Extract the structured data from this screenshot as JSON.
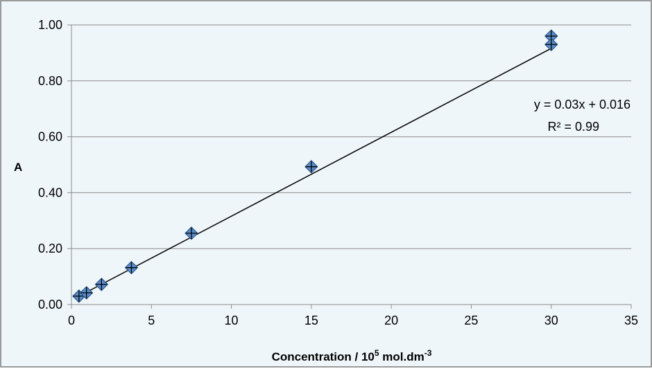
{
  "colors": {
    "background": "#eef6f9",
    "border": "#7a7a7a",
    "gridline": "#8c8c8c",
    "marker_fill": "#5b8cc9",
    "marker_stroke": "#1f4b80",
    "trendline": "#000000"
  },
  "chart_data": {
    "type": "scatter",
    "title": "",
    "xlabel": {
      "prefix": "Concentration / 10",
      "sup1": "5",
      "middle": " mol.dm",
      "sup2": "-3"
    },
    "ylabel": "A",
    "xlim": [
      0,
      35
    ],
    "ylim": [
      0,
      1.0
    ],
    "x_ticks": [
      0,
      5,
      10,
      15,
      20,
      25,
      30,
      35
    ],
    "y_ticks": [
      0.0,
      0.2,
      0.4,
      0.6,
      0.8,
      1.0
    ],
    "x_tick_labels": [
      "0",
      "5",
      "10",
      "15",
      "20",
      "25",
      "30",
      "35"
    ],
    "y_tick_labels": [
      "0.00",
      "0.20",
      "0.40",
      "0.60",
      "0.80",
      "1.00"
    ],
    "grid": "horizontal",
    "marker": "diamond-with-cross",
    "series": [
      {
        "x": [
          0.47,
          0.94,
          1.88,
          3.75,
          7.5,
          15,
          30,
          30
        ],
        "y": [
          0.03,
          0.042,
          0.072,
          0.132,
          0.255,
          0.493,
          0.96,
          0.93
        ]
      }
    ],
    "trendline": {
      "slope": 0.03,
      "intercept": 0.016,
      "x_range": [
        0.47,
        30
      ],
      "equation": "y = 0.03x + 0.016",
      "r_squared": "R² = 0.99"
    }
  }
}
